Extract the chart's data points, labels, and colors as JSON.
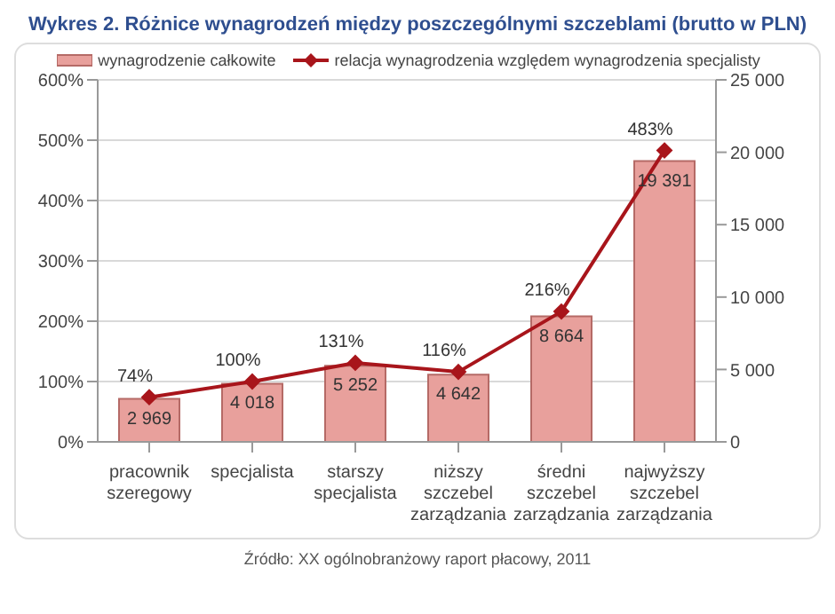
{
  "chart_data": {
    "type": "bar",
    "title": "Wykres 2. Różnice wynagrodzeń między poszczególnymi szczeblami (brutto w PLN)",
    "categories": [
      "pracownik szeregowy",
      "specjalista",
      "starszy specjalista",
      "niższy szczebel zarządzania",
      "średni szczebel zarządzania",
      "najwyższy szczebel zarządzania"
    ],
    "series": [
      {
        "name": "wynagrodzenie całkowite",
        "axis": "y2",
        "color": "#e8a09c",
        "values": [
          2969,
          4018,
          5252,
          4642,
          8664,
          19391
        ],
        "value_labels": [
          "2 969",
          "4 018",
          "5 252",
          "4 642",
          "8 664",
          "19 391"
        ]
      },
      {
        "name": "relacja wynagrodzenia względem wynagrodzenia specjalisty",
        "type": "line",
        "axis": "y",
        "color": "#a8151b",
        "marker": "diamond",
        "values": [
          74,
          100,
          131,
          116,
          216,
          483
        ],
        "value_labels": [
          "74%",
          "100%",
          "131%",
          "116%",
          "216%",
          "483%"
        ]
      }
    ],
    "ylim": [
      0,
      600
    ],
    "yticks": [
      {
        "value": 0,
        "label": "0%"
      },
      {
        "value": 100,
        "label": "100%"
      },
      {
        "value": 200,
        "label": "200%"
      },
      {
        "value": 300,
        "label": "300%"
      },
      {
        "value": 400,
        "label": "400%"
      },
      {
        "value": 500,
        "label": "500%"
      },
      {
        "value": 600,
        "label": "600%"
      }
    ],
    "y2lim": [
      0,
      25000
    ],
    "y2ticks": [
      0,
      {
        "value": 5000,
        "label": "5 000"
      },
      {
        "value": 10000,
        "label": "10 000"
      },
      {
        "value": 15000,
        "label": "15 000"
      },
      {
        "value": 20000,
        "label": "20 000"
      },
      {
        "value": 25000,
        "label": "25 000"
      }
    ],
    "grid": "y",
    "legend": "top",
    "annotations": [
      "Źródło: XX ogólnobranżowy raport płacowy, 2011"
    ]
  }
}
